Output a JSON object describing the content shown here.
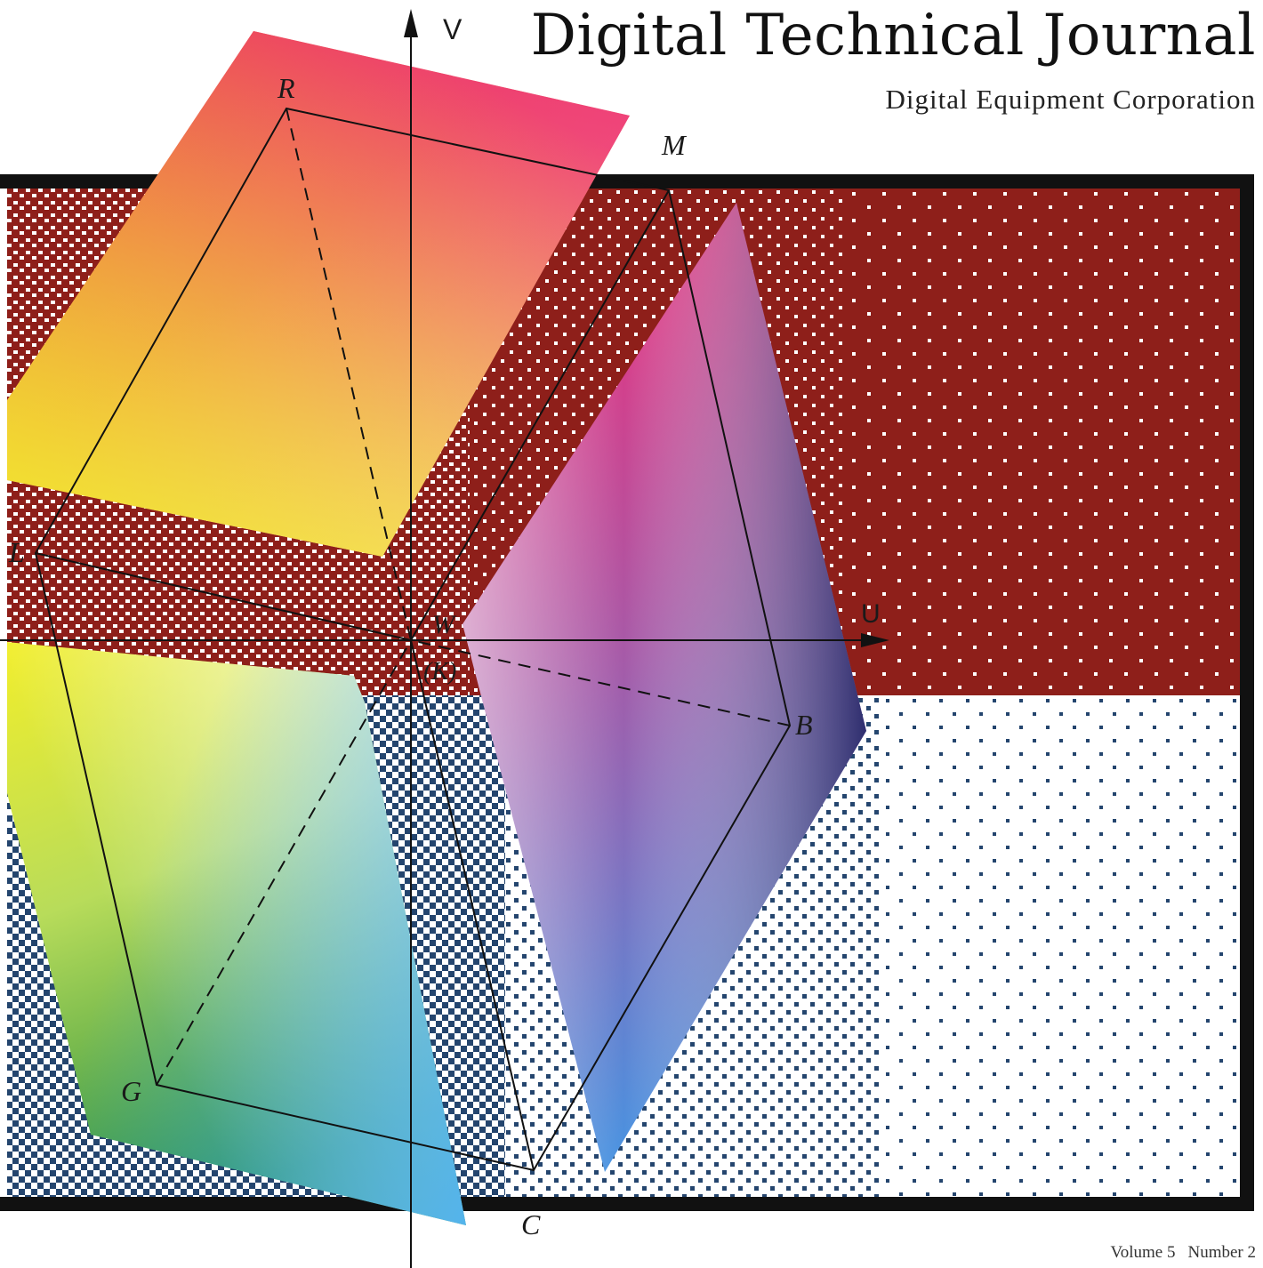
{
  "cover": {
    "journal_title": "Digital Technical Journal",
    "publisher": "Digital Equipment Corporation",
    "volume_label": "Volume 5",
    "number_label": "Number 2"
  },
  "diagram": {
    "axes": {
      "vertical": "V",
      "horizontal": "U"
    },
    "vertices": {
      "red": "R",
      "magenta": "M",
      "yellow": "L",
      "white": "W",
      "black": "(K)",
      "blue": "B",
      "green": "G",
      "cyan": "C"
    }
  },
  "colors": {
    "dither_red": "#8e1f1a",
    "dither_blue": "#24456e",
    "frame": "#111111",
    "red": "#e8332a",
    "magenta": "#ee2f7a",
    "yellow": "#f2ee2a",
    "green": "#1e8a3c",
    "cyan": "#54b4ec",
    "blue": "#2a2a6a"
  }
}
